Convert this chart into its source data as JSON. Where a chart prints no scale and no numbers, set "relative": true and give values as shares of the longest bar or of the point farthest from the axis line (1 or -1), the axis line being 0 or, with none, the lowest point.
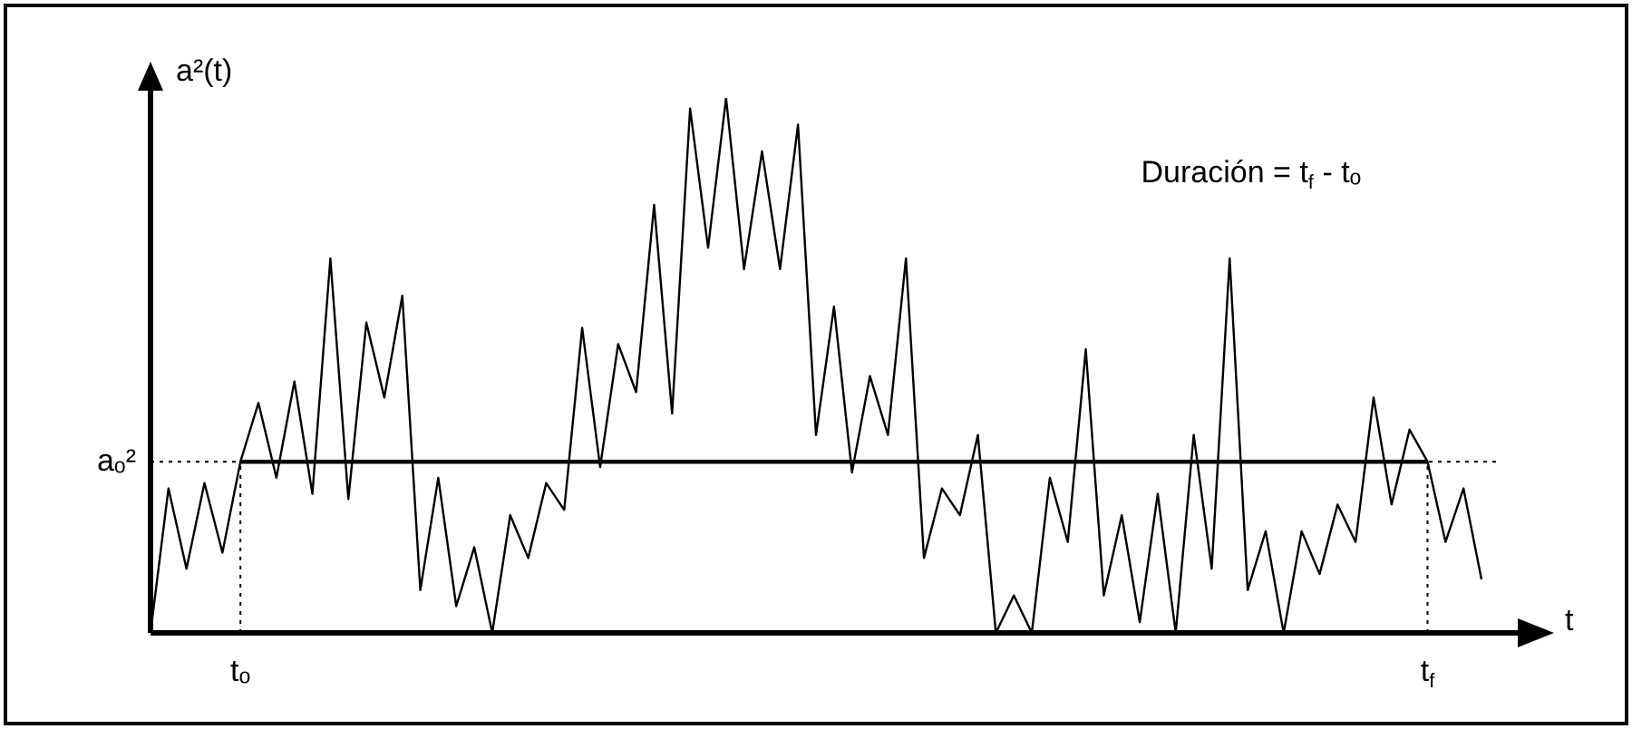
{
  "chart_data": {
    "type": "line",
    "relative": true,
    "xlabel": "t",
    "ylabel": "a²(t)",
    "annotations": [
      "Duración = t$_{f}$ - tₒ"
    ],
    "tick_labels": "x",
    "categories": [
      null,
      null,
      null,
      null,
      null,
      "tₒ",
      null,
      null,
      null,
      null,
      null,
      null,
      null,
      null,
      null,
      null,
      null,
      null,
      null,
      null,
      null,
      null,
      null,
      null,
      null,
      null,
      null,
      null,
      null,
      null,
      null,
      null,
      null,
      null,
      null,
      null,
      null,
      null,
      null,
      null,
      null,
      null,
      null,
      null,
      null,
      null,
      null,
      null,
      null,
      null,
      null,
      null,
      null,
      null,
      null,
      null,
      null,
      null,
      null,
      null,
      null,
      null,
      null,
      null,
      null,
      null,
      null,
      null,
      null,
      null,
      null,
      "t$_{f}$",
      null,
      null,
      null
    ],
    "series": [
      {
        "color": "#000000",
        "values": [
          0,
          0.27,
          0.12,
          0.28,
          0.15,
          0.32,
          0.43,
          0.29,
          0.47,
          0.26,
          0.7,
          0.25,
          0.58,
          0.44,
          0.63,
          0.08,
          0.29,
          0.05,
          0.16,
          0,
          0.22,
          0.14,
          0.28,
          0.23,
          0.57,
          0.31,
          0.54,
          0.45,
          0.8,
          0.41,
          0.98,
          0.72,
          1,
          0.68,
          0.9,
          0.68,
          0.95,
          0.37,
          0.61,
          0.3,
          0.48,
          0.37,
          0.7,
          0.14,
          0.27,
          0.22,
          0.37,
          0,
          0.07,
          0,
          0.29,
          0.17,
          0.53,
          0.07,
          0.22,
          0.02,
          0.26,
          0,
          0.37,
          0.12,
          0.7,
          0.08,
          0.19,
          0,
          0.19,
          0.11,
          0.24,
          0.17,
          0.44,
          0.24,
          0.38,
          0.32,
          0.17,
          0.27,
          0.1
        ]
      },
      {
        "color": "#000000",
        "values": [
          null,
          null,
          null,
          null,
          null,
          0.32,
          0.32,
          0.32,
          0.32,
          0.32,
          0.32,
          0.32,
          0.32,
          0.32,
          0.32,
          0.32,
          0.32,
          0.32,
          0.32,
          0.32,
          0.32,
          0.32,
          0.32,
          0.32,
          0.32,
          0.32,
          0.32,
          0.32,
          0.32,
          0.32,
          0.32,
          0.32,
          0.32,
          0.32,
          0.32,
          0.32,
          0.32,
          0.32,
          0.32,
          0.32,
          0.32,
          0.32,
          0.32,
          0.32,
          0.32,
          0.32,
          0.32,
          0.32,
          0.32,
          0.32,
          0.32,
          0.32,
          0.32,
          0.32,
          0.32,
          0.32,
          0.32,
          0.32,
          0.32,
          0.32,
          0.32,
          0.32,
          0.32,
          0.32,
          0.32,
          0.32,
          0.32,
          0.32,
          0.32,
          0.32,
          0.32,
          0.32,
          null,
          null,
          null
        ]
      }
    ],
    "ref_lines": [
      {
        "axis": "y",
        "value": 0.32,
        "label": "aₒ²",
        "line_style": "dotted",
        "color": "#000000"
      },
      {
        "axis": "x",
        "value": "tₒ",
        "line_style": "dotted",
        "color": "#000000"
      },
      {
        "axis": "x",
        "value": "t$_{f}$",
        "line_style": "dotted",
        "color": "#000000"
      }
    ]
  }
}
